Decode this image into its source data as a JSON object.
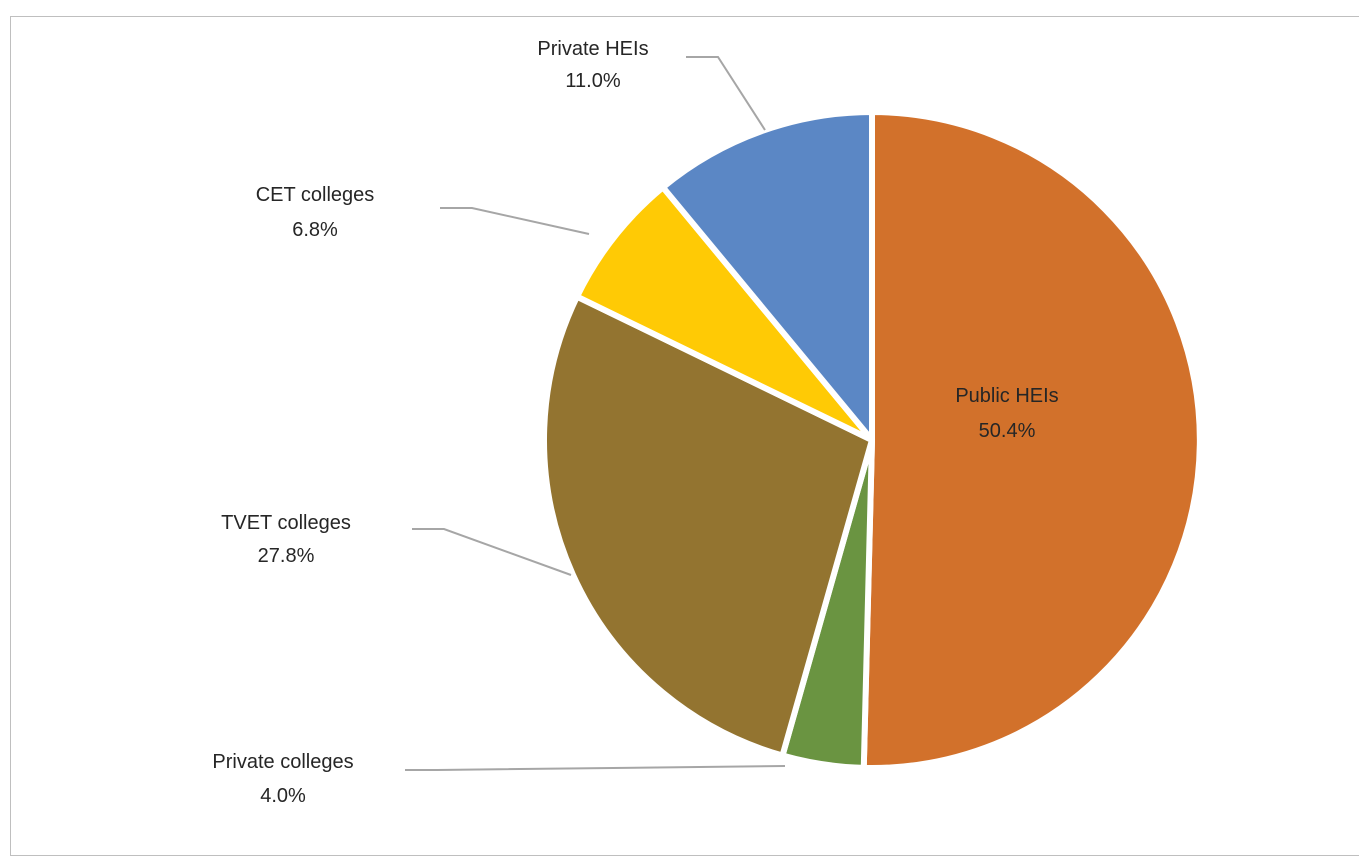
{
  "chart_data": {
    "type": "pie",
    "title": "",
    "start_angle_deg": 0,
    "direction": "clockwise",
    "slices": [
      {
        "label": "Public HEIs",
        "value": 50.4,
        "value_label": "50.4%",
        "color": "#D2712B",
        "label_position": "inside"
      },
      {
        "label": "Private colleges",
        "value": 4.0,
        "value_label": "4.0%",
        "color": "#6A9441",
        "label_position": "outside"
      },
      {
        "label": "TVET colleges",
        "value": 27.8,
        "value_label": "27.8%",
        "color": "#937430",
        "label_position": "outside"
      },
      {
        "label": "CET colleges",
        "value": 6.8,
        "value_label": "6.8%",
        "color": "#FFCA05",
        "label_position": "outside"
      },
      {
        "label": "Private HEIs",
        "value": 11.0,
        "value_label": "11.0%",
        "color": "#5B87C5",
        "label_position": "outside"
      }
    ],
    "legend": "none",
    "leader_line_color": "#a6a6a6",
    "slice_border_color": "#ffffff"
  }
}
